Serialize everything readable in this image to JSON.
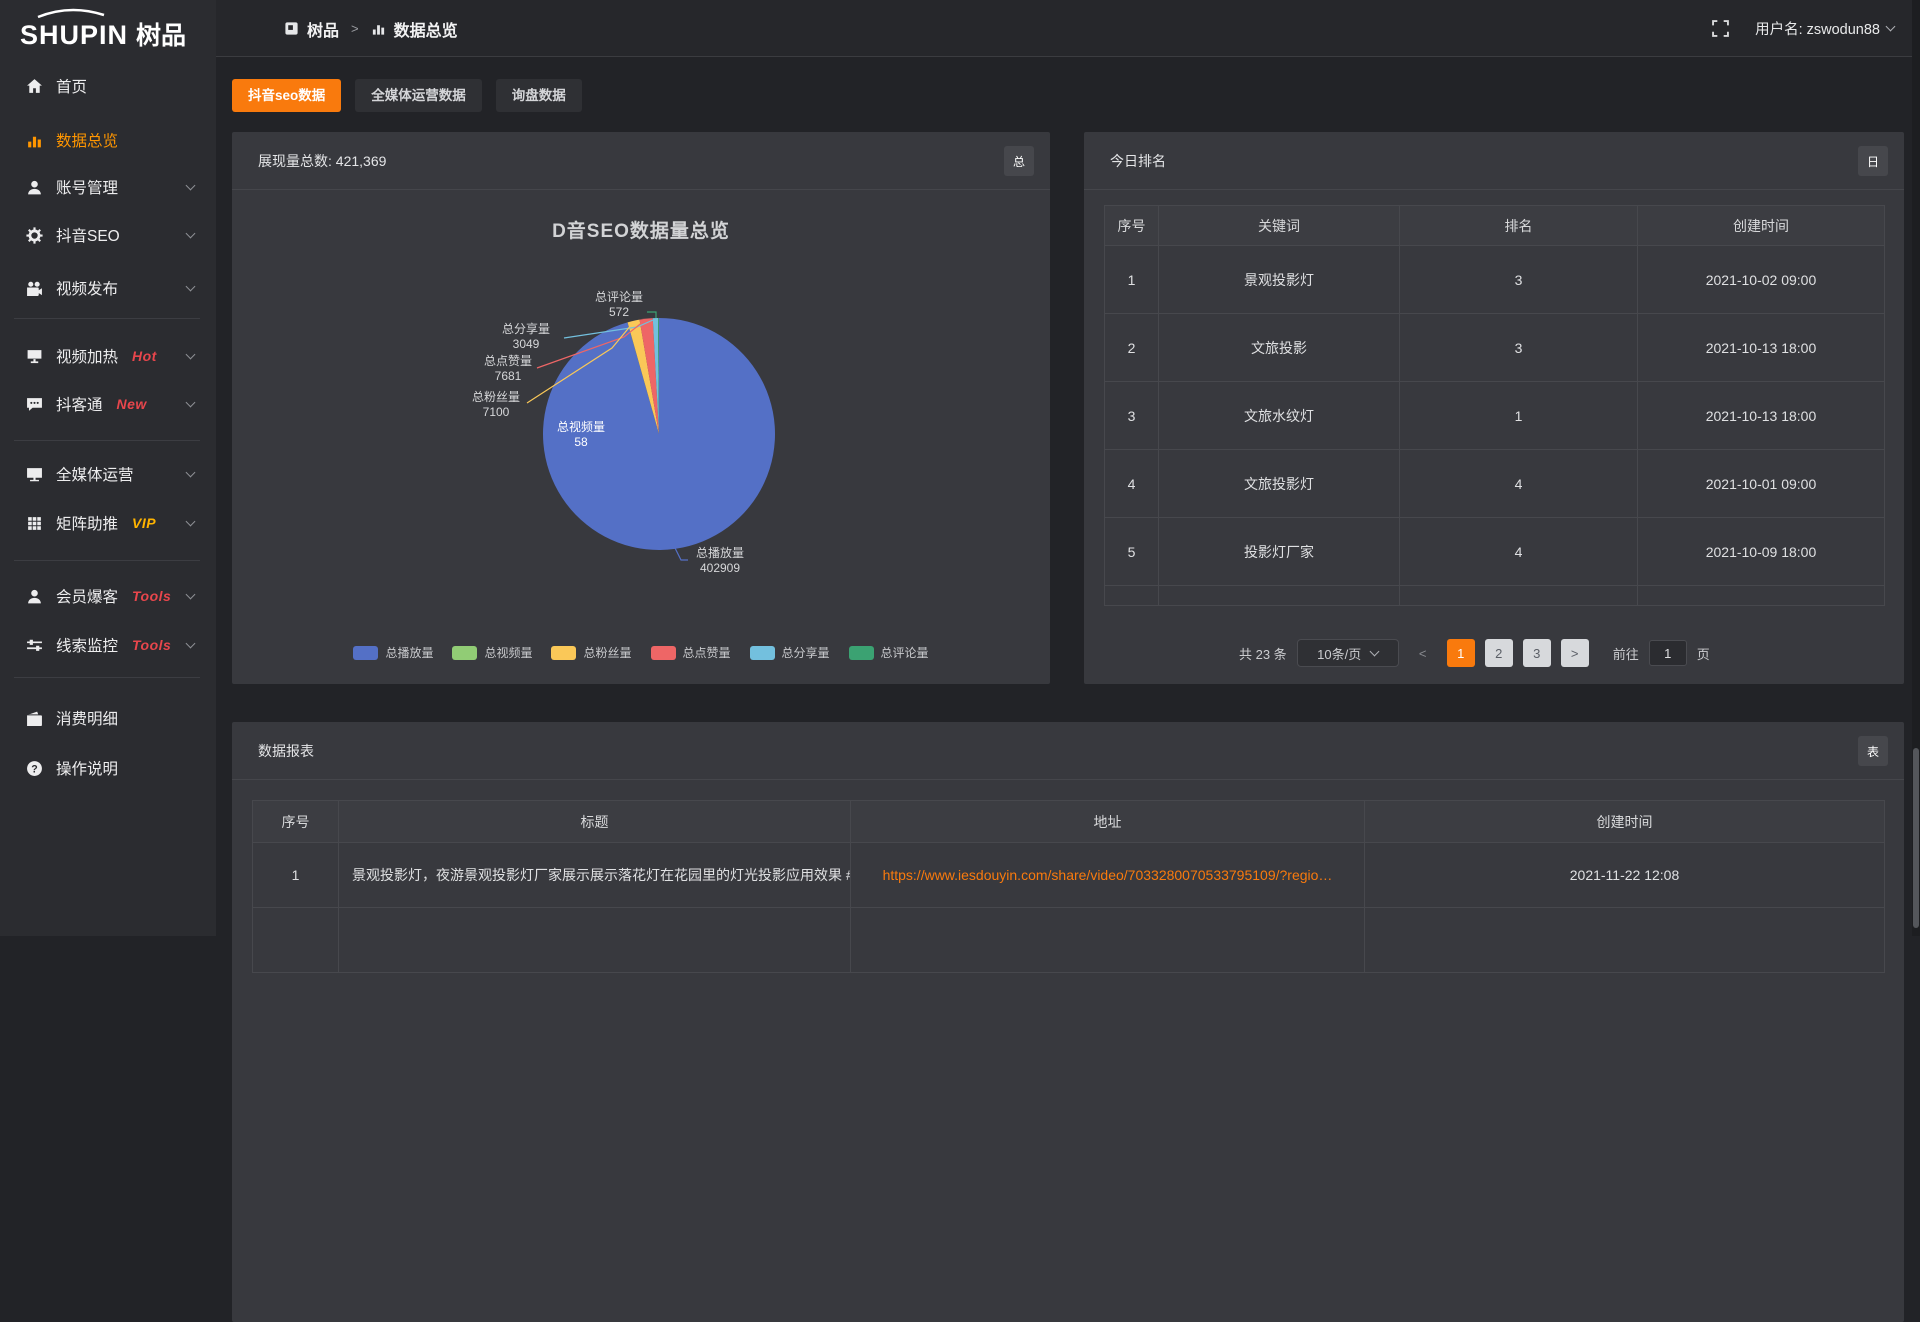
{
  "topbar": {
    "logo_en": "SHUPIN",
    "logo_cn": "树品",
    "breadcrumb": {
      "root": "树品",
      "sep": ">",
      "current": "数据总览"
    },
    "username": "用户名: zswodun88"
  },
  "sidebar": {
    "items": [
      {
        "label": "首页"
      },
      {
        "label": "数据总览",
        "active": true
      },
      {
        "label": "账号管理"
      },
      {
        "label": "抖音SEO"
      },
      {
        "label": "视频发布"
      },
      {
        "label": "视频加热",
        "badge": "Hot",
        "badge_color": "#e8464c"
      },
      {
        "label": "抖客通",
        "badge": "New",
        "badge_color": "#e8464c"
      },
      {
        "label": "全媒体运营"
      },
      {
        "label": "矩阵助推",
        "badge": "VIP",
        "badge_color": "#ffb400"
      },
      {
        "label": "会员爆客",
        "badge": "Tools",
        "badge_color": "#e8464c"
      },
      {
        "label": "线索监控",
        "badge": "Tools",
        "badge_color": "#e8464c"
      },
      {
        "label": "消费明细"
      },
      {
        "label": "操作说明"
      }
    ]
  },
  "tabs": [
    {
      "label": "抖音seo数据",
      "active": true
    },
    {
      "label": "全媒体运营数据"
    },
    {
      "label": "询盘数据"
    }
  ],
  "colors": {
    "accent_orange": "#f97a0d",
    "badge_red": "#e8464c",
    "badge_vip": "#ffb400"
  },
  "overview_card": {
    "header": "展现量总数: 421,369",
    "corner_button": "总"
  },
  "chart_data": {
    "type": "pie",
    "title": "D音SEO数据量总览",
    "total": 421369,
    "legend_position": "bottom",
    "series": [
      {
        "name": "总播放量",
        "value": 402909,
        "color": "#5470c6"
      },
      {
        "name": "总视频量",
        "value": 58,
        "color": "#91cc75"
      },
      {
        "name": "总粉丝量",
        "value": 7100,
        "color": "#fac858"
      },
      {
        "name": "总点赞量",
        "value": 7681,
        "color": "#ee6666"
      },
      {
        "name": "总分享量",
        "value": 3049,
        "color": "#73c0de"
      },
      {
        "name": "总评论量",
        "value": 572,
        "color": "#3ba272"
      }
    ]
  },
  "ranking_card": {
    "title": "今日排名",
    "corner_button": "日",
    "columns": [
      "序号",
      "关键词",
      "排名",
      "创建时间"
    ],
    "rows": [
      {
        "no": "1",
        "keyword": "景观投影灯",
        "rank": "3",
        "created": "2021-10-02 09:00"
      },
      {
        "no": "2",
        "keyword": "文旅投影",
        "rank": "3",
        "created": "2021-10-13 18:00"
      },
      {
        "no": "3",
        "keyword": "文旅水纹灯",
        "rank": "1",
        "created": "2021-10-13 18:00"
      },
      {
        "no": "4",
        "keyword": "文旅投影灯",
        "rank": "4",
        "created": "2021-10-01 09:00"
      },
      {
        "no": "5",
        "keyword": "投影灯厂家",
        "rank": "4",
        "created": "2021-10-09 18:00"
      }
    ],
    "pagination": {
      "total": "共 23 条",
      "page_size": "10条/页",
      "prev": "<",
      "pages": [
        "1",
        "2",
        "3"
      ],
      "active_page": "1",
      "next": ">",
      "goto_label": "前往",
      "goto_value": "1",
      "unit": "页"
    }
  },
  "report_card": {
    "title": "数据报表",
    "corner_button": "表",
    "columns": [
      "序号",
      "标题",
      "地址",
      "创建时间"
    ],
    "rows": [
      {
        "no": "1",
        "title": "景观投影灯，夜游景观投影灯厂家展示展示落花灯在花园里的灯光投影应用效果 #",
        "url": "https://www.iesdouyin.com/share/video/7033280070533795109/?regio…",
        "created": "2021-11-22 12:08"
      }
    ]
  }
}
